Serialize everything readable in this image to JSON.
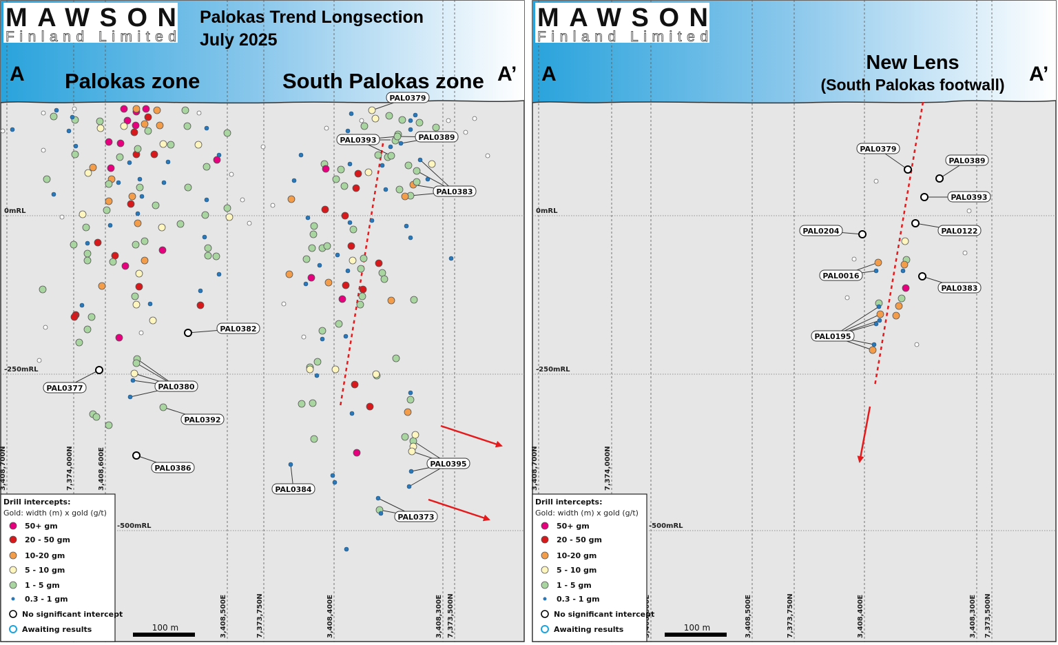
{
  "logo": {
    "brand": "MAWSON",
    "sub": "Finland Limited"
  },
  "title": {
    "line1": "Palokas Trend Longsection",
    "line2": "July 2025"
  },
  "colors": {
    "m50": "#e6007e",
    "r20": "#d7191c",
    "o10": "#f39c4a",
    "y5": "#fff6bf",
    "g1": "#a9d6a0",
    "b03": "#2b78b8",
    "awaiting": "#1aa3e0",
    "fault": "#e41a1c",
    "header": "#2aa6de",
    "ground": "#e6e6e6"
  },
  "left_panel": {
    "section_start": "A",
    "section_end": "A’",
    "zone1": "Palokas zone",
    "zone2": "South Palokas zone",
    "rl_labels": [
      "0mRL",
      "-250mRL",
      "-500mRL"
    ],
    "grid_labels": [
      "3,408,700N",
      "7,374,000N",
      "3,408,600E",
      "3,408,500E",
      "7,373,750N",
      "3,408,400E",
      "3,408,300E",
      "7,373,500N"
    ],
    "holes": [
      "PAL0379",
      "PAL0393",
      "PAL0389",
      "PAL0383",
      "PAL0382",
      "PAL0377",
      "PAL0380",
      "PAL0392",
      "PAL0386",
      "PAL0384",
      "PAL0395",
      "PAL0373"
    ],
    "scale": "100 m"
  },
  "right_panel": {
    "section_start": "A",
    "section_end": "A’",
    "zone1": "New Lens",
    "zone2": "(South Palokas footwall)",
    "rl_labels": [
      "0mRL",
      "-250mRL",
      "-500mRL"
    ],
    "grid_labels": [
      "3,408,700N",
      "7,374,000N",
      "3,408,600E",
      "3,408,500E",
      "7,373,750N",
      "3,408,400E",
      "3,408,300E",
      "7,373,500N"
    ],
    "holes": [
      "PAL0379",
      "PAL0389",
      "PAL0393",
      "PAL0122",
      "PAL0204",
      "PAL0016",
      "PAL0383",
      "PAL0195"
    ],
    "scale": "100 m"
  },
  "legend": {
    "title": "Drill intercepts:",
    "subtitle": "Gold: width (m) x gold (g/t)",
    "items": [
      {
        "key": "m50",
        "label": "50+ gm"
      },
      {
        "key": "r20",
        "label": "20 - 50 gm"
      },
      {
        "key": "o10",
        "label": "10-20 gm"
      },
      {
        "key": "y5",
        "label": "5 - 10 gm"
      },
      {
        "key": "g1",
        "label": "1 - 5 gm"
      },
      {
        "key": "b03",
        "label": "0.3 - 1 gm"
      },
      {
        "key": "none",
        "label": "No significant intercept"
      },
      {
        "key": "awaiting",
        "label": "Awaiting results"
      }
    ]
  }
}
